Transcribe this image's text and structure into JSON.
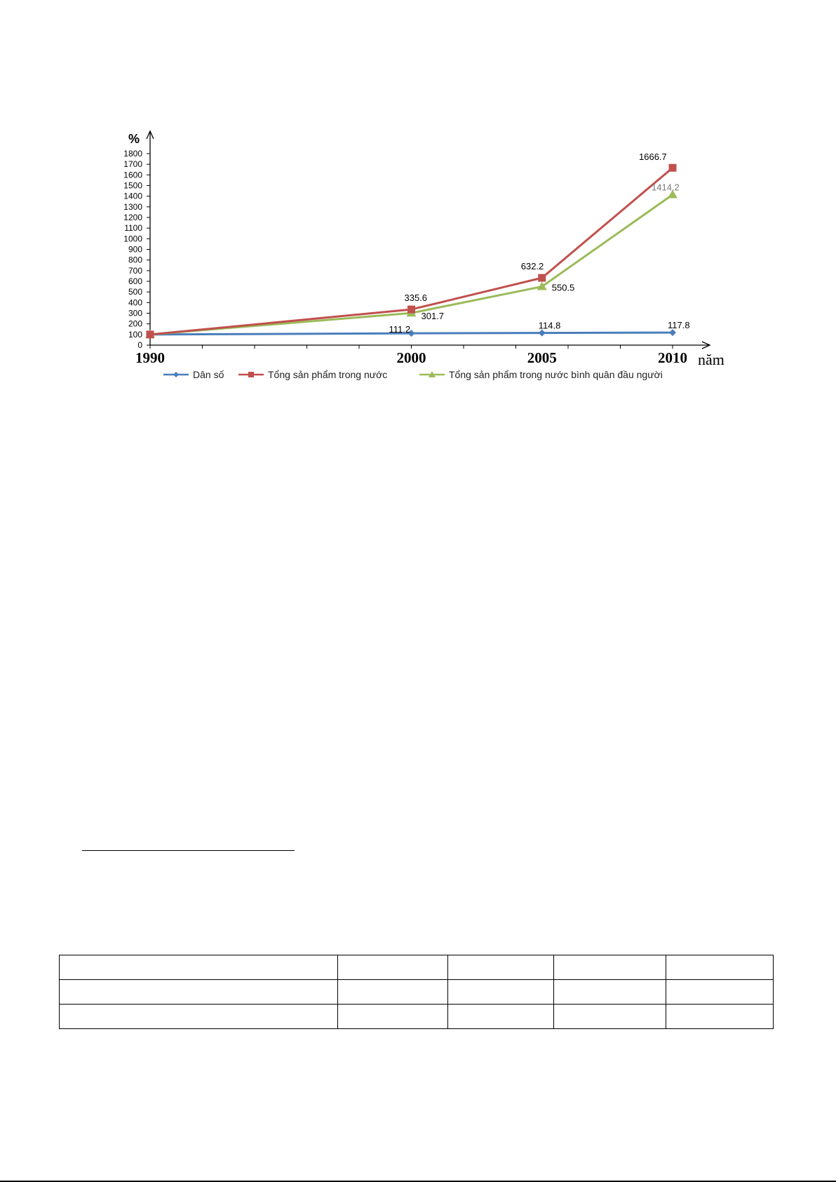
{
  "chart_data": {
    "type": "line",
    "ylabel": "%",
    "xlabel": "năm",
    "ylim": [
      0,
      1800
    ],
    "y_ticks": [
      0,
      100,
      200,
      300,
      400,
      500,
      600,
      700,
      800,
      900,
      1000,
      1100,
      1200,
      1300,
      1400,
      1500,
      1600,
      1700,
      1800
    ],
    "x": [
      1990,
      2000,
      2005,
      2010
    ],
    "legend_position": "bottom",
    "grid": false,
    "series": [
      {
        "name": "Dân số",
        "color": "#4a7ebb",
        "marker": "diamond",
        "values": [
          100,
          111.2,
          114.8,
          117.8
        ],
        "labels": [
          "",
          "111.2",
          "114.8",
          "117.8"
        ]
      },
      {
        "name": "Tổng sản phẩm trong nước",
        "color": "#c0504d",
        "marker": "square",
        "values": [
          100,
          335.6,
          632.2,
          1666.7
        ],
        "labels": [
          "",
          "335.6",
          "632.2",
          "1666.7"
        ]
      },
      {
        "name": "Tổng sản phẩm trong nước   bình quân đầu người",
        "color": "#9bbb59",
        "marker": "triangle",
        "values": [
          100,
          301.7,
          550.5,
          1414.2
        ],
        "labels": [
          "",
          "301.7",
          "550.5",
          "1414.2"
        ]
      }
    ]
  },
  "table": {
    "rows": [
      [
        "",
        "",
        "",
        "",
        ""
      ],
      [
        "",
        "",
        "",
        "",
        ""
      ],
      [
        "",
        "",
        "",
        "",
        ""
      ]
    ]
  }
}
